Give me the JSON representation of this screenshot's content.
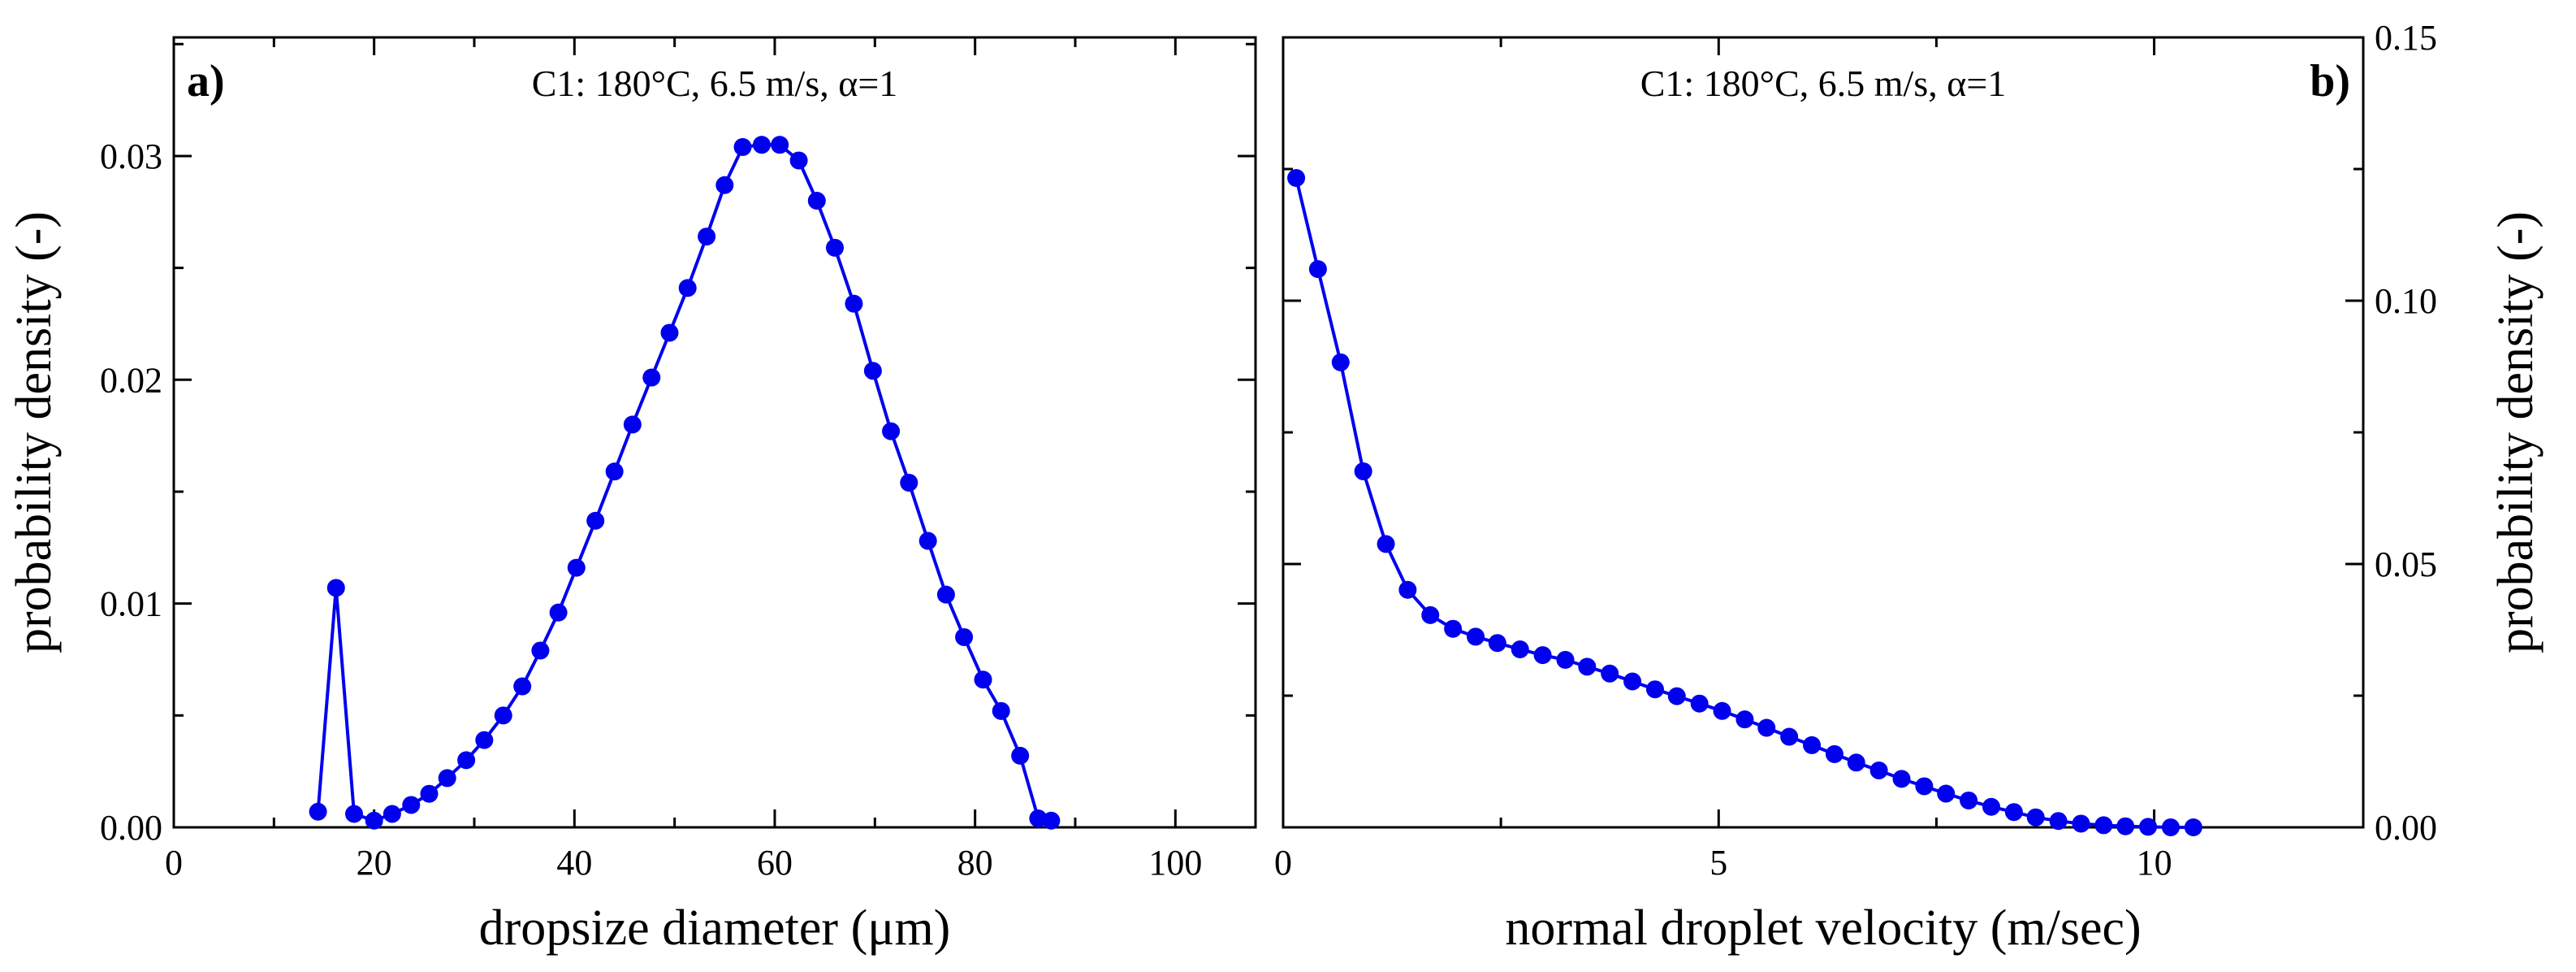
{
  "colors": {
    "series": "#0000ee",
    "axis": "#000000",
    "background": "#ffffff"
  },
  "chart_data": [
    {
      "id": "panel-a",
      "type": "line",
      "panel_label": "a)",
      "title": "C1: 180°C, 6.5 m/s, α=1",
      "xlabel": "dropsize diameter (μm)",
      "ylabel": "probability density (-)",
      "xlim": [
        0,
        108
      ],
      "ylim": [
        0,
        0.0353
      ],
      "xticks": [
        0,
        20,
        40,
        60,
        80,
        100
      ],
      "xtick_labels": [
        "0",
        "20",
        "40",
        "60",
        "80",
        "100"
      ],
      "yticks": [
        0,
        0.01,
        0.02,
        0.03
      ],
      "ytick_labels": [
        "0.00",
        "0.01",
        "0.02",
        "0.03"
      ],
      "y_axis_side": "left",
      "title_position": "top-center",
      "label_position": "top-left",
      "series": [
        {
          "name": "C1",
          "marker": "circle",
          "x": [
            14.4,
            16.2,
            18.0,
            20.0,
            21.8,
            23.7,
            25.5,
            27.3,
            29.2,
            31.0,
            32.9,
            34.8,
            36.6,
            38.4,
            40.2,
            42.1,
            44.0,
            45.8,
            47.7,
            49.5,
            51.3,
            53.2,
            55.0,
            56.8,
            58.7,
            60.5,
            62.4,
            64.2,
            66.0,
            67.9,
            69.8,
            71.6,
            73.4,
            75.3,
            77.1,
            78.9,
            80.8,
            82.6,
            84.5,
            86.3,
            87.6
          ],
          "y": [
            0.0007,
            0.0107,
            0.0006,
            0.0003,
            0.0006,
            0.001,
            0.0015,
            0.0022,
            0.003,
            0.0039,
            0.005,
            0.0063,
            0.0079,
            0.0096,
            0.0116,
            0.0137,
            0.0159,
            0.018,
            0.0201,
            0.0221,
            0.0241,
            0.0264,
            0.0287,
            0.0304,
            0.0305,
            0.0305,
            0.0298,
            0.028,
            0.0259,
            0.0234,
            0.0204,
            0.0177,
            0.0154,
            0.0128,
            0.0104,
            0.0085,
            0.0066,
            0.0052,
            0.0032,
            0.0004,
            0.0003
          ]
        }
      ]
    },
    {
      "id": "panel-b",
      "type": "line",
      "panel_label": "b)",
      "title": "C1: 180°C, 6.5 m/s, α=1",
      "xlabel": "normal droplet velocity (m/sec)",
      "ylabel": "probability density (-)",
      "xlim": [
        0,
        12.4
      ],
      "ylim": [
        0,
        0.15
      ],
      "xticks": [
        0,
        5,
        10
      ],
      "xtick_labels": [
        "0",
        "5",
        "10"
      ],
      "yticks": [
        0,
        0.05,
        0.1,
        0.15
      ],
      "ytick_labels": [
        "0.00",
        "0.05",
        "0.10",
        "0.15"
      ],
      "y_axis_side": "right",
      "title_position": "top-center",
      "label_position": "top-right",
      "series": [
        {
          "name": "C1",
          "marker": "circle",
          "x": [
            0.15,
            0.4,
            0.66,
            0.92,
            1.18,
            1.43,
            1.69,
            1.95,
            2.21,
            2.46,
            2.72,
            2.98,
            3.24,
            3.49,
            3.75,
            4.01,
            4.27,
            4.52,
            4.78,
            5.04,
            5.3,
            5.55,
            5.81,
            6.07,
            6.33,
            6.58,
            6.84,
            7.1,
            7.36,
            7.61,
            7.87,
            8.13,
            8.39,
            8.64,
            8.9,
            9.16,
            9.42,
            9.67,
            9.93,
            10.19,
            10.45
          ],
          "y": [
            0.1233,
            0.106,
            0.0883,
            0.0676,
            0.0538,
            0.0451,
            0.0403,
            0.0377,
            0.0362,
            0.035,
            0.0338,
            0.0327,
            0.0318,
            0.0305,
            0.0292,
            0.0277,
            0.0262,
            0.0249,
            0.0235,
            0.0221,
            0.0205,
            0.0189,
            0.0172,
            0.0156,
            0.0139,
            0.0123,
            0.0108,
            0.0092,
            0.0078,
            0.0064,
            0.0051,
            0.0039,
            0.0029,
            0.0019,
            0.0012,
            0.0007,
            0.0004,
            0.0002,
            0.0001,
            0.0,
            0.0
          ]
        }
      ]
    }
  ]
}
